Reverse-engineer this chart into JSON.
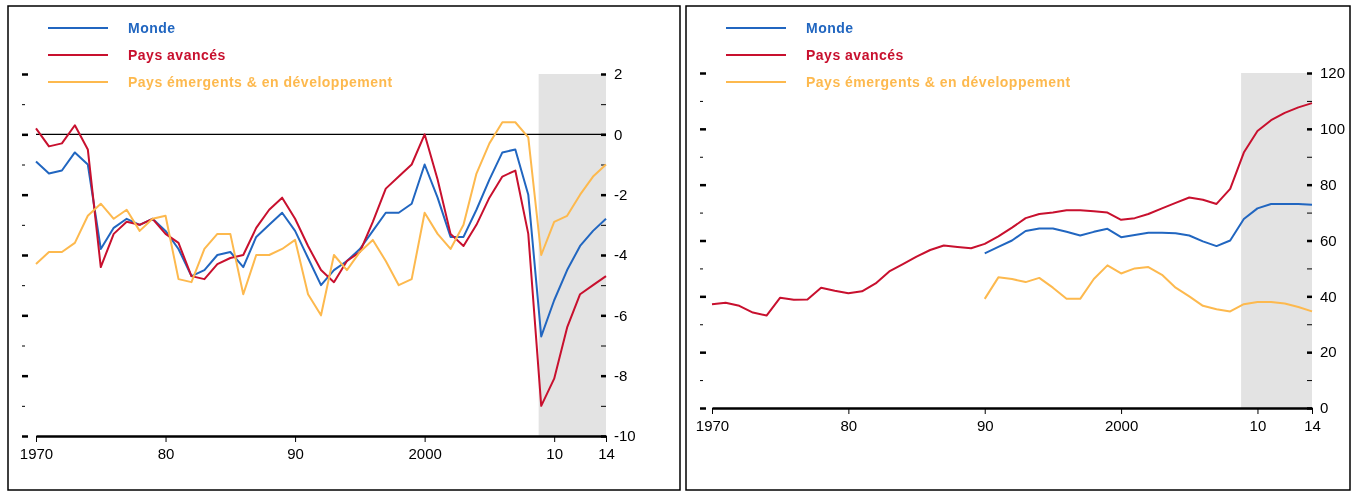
{
  "chart_data": [
    {
      "type": "line",
      "legend": "top left",
      "xlim": [
        1970,
        2014
      ],
      "ylim": [
        -10,
        2
      ],
      "xticks": [
        {
          "value": 1970,
          "label": "1970"
        },
        {
          "value": 1980,
          "label": "80"
        },
        {
          "value": 1990,
          "label": "90"
        },
        {
          "value": 2000,
          "label": "2000"
        },
        {
          "value": 2010,
          "label": "10"
        },
        {
          "value": 2014,
          "label": "14"
        }
      ],
      "yticks": [
        -10,
        {
          "value": -9,
          "label": null
        },
        -8,
        {
          "value": -7,
          "label": null
        },
        -6,
        {
          "value": -5,
          "label": null
        },
        -4,
        {
          "value": -3,
          "label": null
        },
        -2,
        {
          "value": -1,
          "label": null
        },
        0,
        {
          "value": 1,
          "label": null
        },
        2
      ],
      "bands": [
        {
          "axis": "x",
          "from": 2008.8,
          "to": 2014,
          "color": "#e3e3e3"
        }
      ],
      "ref_lines": [
        {
          "axis": "y",
          "value": 0,
          "color": "#000000"
        }
      ],
      "x": [
        1970,
        1971,
        1972,
        1973,
        1974,
        1975,
        1976,
        1977,
        1978,
        1979,
        1980,
        1981,
        1982,
        1983,
        1984,
        1985,
        1986,
        1987,
        1988,
        1989,
        1990,
        1991,
        1992,
        1993,
        1994,
        1995,
        1996,
        1997,
        1998,
        1999,
        2000,
        2001,
        2002,
        2003,
        2004,
        2005,
        2006,
        2007,
        2008,
        2009,
        2010,
        2011,
        2012,
        2013,
        2014
      ],
      "series": [
        {
          "name": "Monde",
          "color": "#2166c0",
          "values": [
            -0.9,
            -1.3,
            -1.2,
            -0.6,
            -1.0,
            -3.8,
            -3.1,
            -2.8,
            -3.0,
            -2.8,
            -3.2,
            -3.8,
            -4.7,
            -4.5,
            -4.0,
            -3.9,
            -4.4,
            -3.4,
            -3.0,
            -2.6,
            -3.2,
            -4.1,
            -5.0,
            -4.5,
            -4.2,
            -3.8,
            -3.2,
            -2.6,
            -2.6,
            -2.3,
            -1.0,
            -2.1,
            -3.4,
            -3.4,
            -2.5,
            -1.5,
            -0.6,
            -0.5,
            -2.0,
            -6.7,
            -5.5,
            -4.5,
            -3.7,
            -3.2,
            -2.8
          ]
        },
        {
          "name": "Pays avancés",
          "color": "#c8102e",
          "values": [
            0.2,
            -0.4,
            -0.3,
            0.3,
            -0.5,
            -4.4,
            -3.3,
            -2.9,
            -3.0,
            -2.8,
            -3.3,
            -3.6,
            -4.7,
            -4.8,
            -4.3,
            -4.1,
            -4.0,
            -3.1,
            -2.5,
            -2.1,
            -2.8,
            -3.7,
            -4.5,
            -4.9,
            -4.2,
            -3.9,
            -2.9,
            -1.8,
            -1.4,
            -1.0,
            0,
            -1.5,
            -3.3,
            -3.7,
            -3.0,
            -2.1,
            -1.4,
            -1.2,
            -3.3,
            -9.0,
            -8.1,
            -6.4,
            -5.3,
            -5.0,
            -4.7
          ]
        },
        {
          "name": "Pays émergents & en développement",
          "color": "#fdb94e",
          "values": [
            -4.3,
            -3.9,
            -3.9,
            -3.6,
            -2.7,
            -2.3,
            -2.8,
            -2.5,
            -3.2,
            -2.8,
            -2.7,
            -4.8,
            -4.9,
            -3.8,
            -3.3,
            -3.3,
            -5.3,
            -4.0,
            -4.0,
            -3.8,
            -3.5,
            -5.3,
            -6.0,
            -4.0,
            -4.5,
            -3.9,
            -3.5,
            -4.2,
            -5.0,
            -4.8,
            -2.6,
            -3.3,
            -3.8,
            -3.0,
            -1.3,
            -0.3,
            0.4,
            0.4,
            -0.1,
            -4.0,
            -2.9,
            -2.7,
            -2.0,
            -1.4,
            -1.0
          ]
        }
      ]
    },
    {
      "type": "line",
      "legend": "top left",
      "xlim": [
        1970,
        2014
      ],
      "ylim": [
        0,
        120
      ],
      "xticks": [
        {
          "value": 1970,
          "label": "1970"
        },
        {
          "value": 1980,
          "label": "80"
        },
        {
          "value": 1990,
          "label": "90"
        },
        {
          "value": 2000,
          "label": "2000"
        },
        {
          "value": 2010,
          "label": "10"
        },
        {
          "value": 2014,
          "label": "14"
        }
      ],
      "yticks": [
        0,
        {
          "value": 10,
          "label": null
        },
        20,
        {
          "value": 30,
          "label": null
        },
        40,
        {
          "value": 50,
          "label": null
        },
        60,
        {
          "value": 70,
          "label": null
        },
        80,
        {
          "value": 90,
          "label": null
        },
        100,
        {
          "value": 110,
          "label": null
        },
        120
      ],
      "bands": [
        {
          "axis": "x",
          "from": 2008.8,
          "to": 2014,
          "color": "#e3e3e3"
        }
      ],
      "x": [
        1970,
        1971,
        1972,
        1973,
        1974,
        1975,
        1976,
        1977,
        1978,
        1979,
        1980,
        1981,
        1982,
        1983,
        1984,
        1985,
        1986,
        1987,
        1988,
        1989,
        1990,
        1991,
        1992,
        1993,
        1994,
        1995,
        1996,
        1997,
        1998,
        1999,
        2000,
        2001,
        2002,
        2003,
        2004,
        2005,
        2006,
        2007,
        2008,
        2009,
        2010,
        2011,
        2012,
        2013,
        2014
      ],
      "series": [
        {
          "name": "Monde",
          "color": "#2166c0",
          "values": [
            null,
            null,
            null,
            null,
            null,
            null,
            null,
            null,
            null,
            null,
            null,
            null,
            null,
            null,
            null,
            null,
            null,
            null,
            null,
            null,
            55.4,
            57.7,
            60.0,
            63.4,
            64.3,
            64.3,
            63.1,
            61.8,
            63.1,
            64.2,
            61.2,
            62.0,
            62.8,
            62.8,
            62.6,
            61.8,
            59.7,
            58.0,
            60.0,
            67.7,
            71.5,
            73.1,
            73.1,
            73.1,
            72.8
          ]
        },
        {
          "name": "Pays avancés",
          "color": "#c8102e",
          "values": [
            37.2,
            37.7,
            36.6,
            34.2,
            33.1,
            39.5,
            38.8,
            38.9,
            43.1,
            42.0,
            41.1,
            41.8,
            44.6,
            48.9,
            51.5,
            54.2,
            56.6,
            58.2,
            57.7,
            57.2,
            58.8,
            61.5,
            64.6,
            68.0,
            69.5,
            70.0,
            70.8,
            70.8,
            70.5,
            70.0,
            67.4,
            68.0,
            69.5,
            71.5,
            73.5,
            75.4,
            74.6,
            73.1,
            78.5,
            91.5,
            99.2,
            103.1,
            105.7,
            107.7,
            109.2
          ]
        },
        {
          "name": "Pays émergents & en développement",
          "color": "#fdb94e",
          "values": [
            null,
            null,
            null,
            null,
            null,
            null,
            null,
            null,
            null,
            null,
            null,
            null,
            null,
            null,
            null,
            null,
            null,
            null,
            null,
            null,
            39.1,
            46.8,
            46.2,
            45.1,
            46.6,
            43.1,
            39.1,
            39.1,
            46.2,
            51.1,
            48.2,
            50.0,
            50.5,
            47.7,
            43.1,
            40.0,
            36.6,
            35.4,
            34.6,
            37.2,
            38.0,
            38.0,
            37.4,
            36.2,
            34.6
          ]
        }
      ]
    }
  ]
}
